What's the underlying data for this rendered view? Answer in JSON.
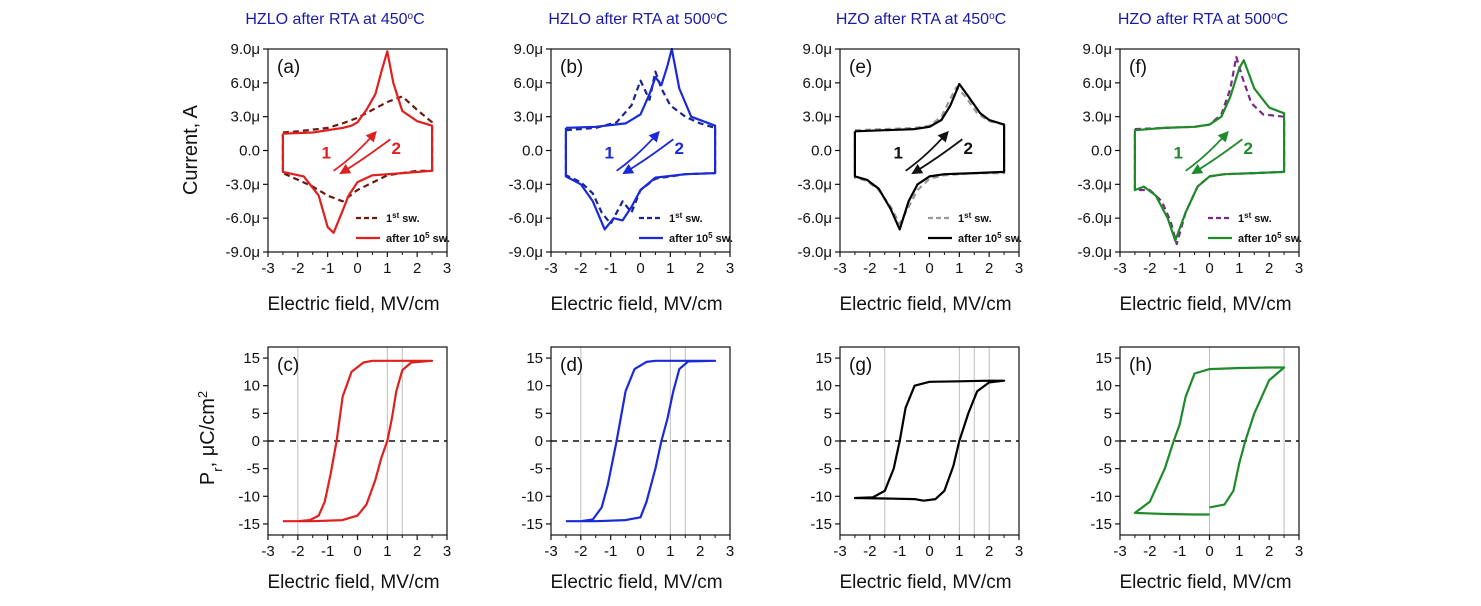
{
  "column_titles": [
    {
      "pre": "HZLO after RTA at  450",
      "deg": "o",
      "post": "C"
    },
    {
      "pre": "HZLO after RTA at  500",
      "deg": "o",
      "post": "C"
    },
    {
      "pre": "HZO after RTA at  450",
      "deg": "o",
      "post": "C"
    },
    {
      "pre": "HZO after RTA at  500",
      "deg": "o",
      "post": "C"
    }
  ],
  "labels": {
    "current_ylabel": "Current, A",
    "pr_ylabel_main": "P",
    "pr_ylabel_sub": "r",
    "pr_ylabel_mid": ", μC/cm",
    "pr_ylabel_sup": "2",
    "xlabel": "Electric field, MV/cm",
    "legend_first_pre": "1",
    "legend_first_sup": "st",
    "legend_first_post": " sw.",
    "legend_after_pre": "after 10",
    "legend_after_sup": "5",
    "legend_after_post": " sw.",
    "arrow_1": "1",
    "arrow_2": "2"
  },
  "axes": {
    "x_ticks": [
      "-3",
      "-2",
      "-1",
      "0",
      "1",
      "2",
      "3"
    ],
    "current_ticks": [
      "9.0μ",
      "6.0μ",
      "3.0μ",
      "0.0",
      "-3.0μ",
      "-6.0μ",
      "-9.0μ"
    ],
    "pr_ticks": [
      "15",
      "10",
      "5",
      "0",
      "-5",
      "-10",
      "-15"
    ]
  },
  "chart_data": [
    {
      "type": "line",
      "panel": "(a)",
      "quantity": "current",
      "color": "#e0201e",
      "xlim": [
        -3,
        3
      ],
      "ylim": [
        -9e-06,
        9e-06
      ],
      "series": [
        {
          "name": "1st sw.",
          "style": "dashed",
          "color": "#6b1a12",
          "upper": {
            "x": [
              -2.5,
              -2.0,
              -1.0,
              -0.5,
              0.0,
              0.5,
              1.0,
              1.5,
              2.0,
              2.5
            ],
            "y": [
              1.6e-06,
              1.7e-06,
              2e-06,
              2.4e-06,
              2.9e-06,
              3.6e-06,
              4.3e-06,
              4.8e-06,
              3.6e-06,
              2.5e-06
            ]
          },
          "lower": {
            "x": [
              2.5,
              2.0,
              1.0,
              0.0,
              -0.5,
              -1.0,
              -1.5,
              -2.0,
              -2.5
            ],
            "y": [
              -1.8e-06,
              -1.8e-06,
              -2.2e-06,
              -3.5e-06,
              -4.5e-06,
              -4e-06,
              -3.2e-06,
              -2.6e-06,
              -2e-06
            ]
          }
        },
        {
          "name": "after 10^5 sw.",
          "style": "solid",
          "color": "#e0201e",
          "upper": {
            "x": [
              -2.5,
              -1.5,
              -0.5,
              -0.2,
              0.0,
              0.3,
              0.6,
              0.8,
              1.0,
              1.2,
              1.5,
              2.0,
              2.5
            ],
            "y": [
              1.5e-06,
              1.6e-06,
              2e-06,
              2.2e-06,
              2.5e-06,
              3.6e-06,
              5e-06,
              7e-06,
              8.8e-06,
              6e-06,
              3.5e-06,
              2.6e-06,
              2.2e-06
            ]
          },
          "lower": {
            "x": [
              2.5,
              1.5,
              0.5,
              0.0,
              -0.3,
              -0.6,
              -0.8,
              -1.0,
              -1.3,
              -1.8,
              -2.5
            ],
            "y": [
              -1.8e-06,
              -2e-06,
              -2.2e-06,
              -2.8e-06,
              -4e-06,
              -6e-06,
              -7.3e-06,
              -6.8e-06,
              -4e-06,
              -2.3e-06,
              -1.9e-06
            ]
          }
        }
      ]
    },
    {
      "type": "line",
      "panel": "(b)",
      "quantity": "current",
      "color": "#1a2ad6",
      "xlim": [
        -3,
        3
      ],
      "ylim": [
        -9e-06,
        9e-06
      ],
      "series": [
        {
          "name": "1st sw.",
          "style": "dashed",
          "color": "#1a2390",
          "upper": {
            "x": [
              -2.5,
              -1.5,
              -0.8,
              -0.3,
              0.0,
              0.3,
              0.5,
              0.7,
              1.0,
              1.5,
              2.0,
              2.5
            ],
            "y": [
              1.8e-06,
              2e-06,
              2.5e-06,
              4e-06,
              6.2e-06,
              4.5e-06,
              7e-06,
              5.5e-06,
              4e-06,
              3e-06,
              2.4e-06,
              2e-06
            ]
          },
          "lower": {
            "x": [
              2.5,
              1.5,
              0.5,
              0.0,
              -0.3,
              -0.6,
              -1.0,
              -1.3,
              -1.6,
              -2.0,
              -2.5
            ],
            "y": [
              -2e-06,
              -2.1e-06,
              -2.5e-06,
              -3.5e-06,
              -5.5e-06,
              -4.5e-06,
              -6.5e-06,
              -5.5e-06,
              -3.8e-06,
              -2.8e-06,
              -2.2e-06
            ]
          }
        },
        {
          "name": "after 10^5 sw.",
          "style": "solid",
          "color": "#1a2ad6",
          "upper": {
            "x": [
              -2.5,
              -1.5,
              -0.5,
              0.0,
              0.3,
              0.5,
              0.7,
              0.9,
              1.05,
              1.3,
              1.7,
              2.5
            ],
            "y": [
              2e-06,
              2.1e-06,
              2.4e-06,
              3.2e-06,
              5e-06,
              6.5e-06,
              5.8e-06,
              7.5e-06,
              9e-06,
              5.5e-06,
              3e-06,
              2.2e-06
            ]
          },
          "lower": {
            "x": [
              2.5,
              1.5,
              0.5,
              0.0,
              -0.3,
              -0.6,
              -0.9,
              -1.2,
              -1.6,
              -2.0,
              -2.5
            ],
            "y": [
              -2e-06,
              -2.1e-06,
              -2.4e-06,
              -3.5e-06,
              -5e-06,
              -6.2e-06,
              -6e-06,
              -7e-06,
              -4.5e-06,
              -3e-06,
              -2.3e-06
            ]
          }
        }
      ]
    },
    {
      "type": "line",
      "panel": "(e)",
      "quantity": "current",
      "color": "#000000",
      "xlim": [
        -3,
        3
      ],
      "ylim": [
        -9e-06,
        9e-06
      ],
      "series": [
        {
          "name": "1st sw.",
          "style": "dashed",
          "color": "#999999",
          "upper": {
            "x": [
              -2.5,
              -1.5,
              -0.5,
              0.0,
              0.4,
              0.7,
              0.9,
              1.2,
              1.6,
              2.0,
              2.5
            ],
            "y": [
              1.8e-06,
              1.9e-06,
              2e-06,
              2.2e-06,
              3e-06,
              4.6e-06,
              5.6e-06,
              4.8e-06,
              3.3e-06,
              2.6e-06,
              2.3e-06
            ]
          },
          "lower": {
            "x": [
              2.5,
              1.5,
              0.5,
              0.0,
              -0.4,
              -0.7,
              -1.0,
              -1.3,
              -1.7,
              -2.1,
              -2.5
            ],
            "y": [
              -2e-06,
              -2e-06,
              -2.2e-06,
              -2.5e-06,
              -3.5e-06,
              -5e-06,
              -6.5e-06,
              -5e-06,
              -3.5e-06,
              -2.7e-06,
              -2.4e-06
            ]
          }
        },
        {
          "name": "after 10^5 sw.",
          "style": "solid",
          "color": "#000000",
          "upper": {
            "x": [
              -2.5,
              -1.5,
              -0.5,
              0.0,
              0.4,
              0.7,
              1.0,
              1.3,
              1.7,
              2.0,
              2.5
            ],
            "y": [
              1.7e-06,
              1.8e-06,
              1.9e-06,
              2.1e-06,
              2.7e-06,
              4e-06,
              5.9e-06,
              4.8e-06,
              3.3e-06,
              2.7e-06,
              2.3e-06
            ]
          },
          "lower": {
            "x": [
              2.5,
              1.5,
              0.5,
              0.0,
              -0.4,
              -0.7,
              -1.0,
              -1.3,
              -1.7,
              -2.1,
              -2.5
            ],
            "y": [
              -1.9e-06,
              -2e-06,
              -2.1e-06,
              -2.3e-06,
              -3e-06,
              -4.5e-06,
              -7e-06,
              -5.2e-06,
              -3.4e-06,
              -2.6e-06,
              -2.3e-06
            ]
          }
        }
      ]
    },
    {
      "type": "line",
      "panel": "(f)",
      "quantity": "current",
      "color": "#1f8a2a",
      "xlim": [
        -3,
        3
      ],
      "ylim": [
        -9e-06,
        9e-06
      ],
      "series": [
        {
          "name": "1st sw.",
          "style": "dashed",
          "color": "#7a2a86",
          "upper": {
            "x": [
              -2.5,
              -1.5,
              -0.5,
              0.0,
              0.4,
              0.7,
              0.9,
              1.1,
              1.4,
              1.8,
              2.5
            ],
            "y": [
              1.9e-06,
              2e-06,
              2.1e-06,
              2.3e-06,
              3.2e-06,
              5.5e-06,
              8.3e-06,
              6.5e-06,
              4.2e-06,
              3.2e-06,
              3e-06
            ]
          },
          "lower": {
            "x": [
              2.5,
              1.5,
              0.5,
              0.0,
              -0.4,
              -0.8,
              -1.1,
              -1.3,
              -1.6,
              -2.0,
              -2.5
            ],
            "y": [
              -1.9e-06,
              -2e-06,
              -2.1e-06,
              -2.3e-06,
              -3.2e-06,
              -5.5e-06,
              -8.3e-06,
              -6.3e-06,
              -4.5e-06,
              -3.5e-06,
              -3.5e-06
            ]
          }
        },
        {
          "name": "after 10^5 sw.",
          "style": "solid",
          "color": "#1f8a2a",
          "upper": {
            "x": [
              -2.5,
              -1.5,
              -0.5,
              0.0,
              0.4,
              0.7,
              1.0,
              1.15,
              1.5,
              2.0,
              2.5
            ],
            "y": [
              1.8e-06,
              2e-06,
              2.1e-06,
              2.3e-06,
              3e-06,
              4.8e-06,
              7.3e-06,
              8e-06,
              5.5e-06,
              3.8e-06,
              3.3e-06
            ]
          },
          "lower": {
            "x": [
              2.5,
              1.5,
              0.5,
              0.0,
              -0.4,
              -0.8,
              -1.15,
              -1.4,
              -1.8,
              -2.2,
              -2.5
            ],
            "y": [
              -1.9e-06,
              -2e-06,
              -2.1e-06,
              -2.3e-06,
              -3.2e-06,
              -5.5e-06,
              -8e-06,
              -6e-06,
              -4e-06,
              -3.2e-06,
              -3.5e-06
            ]
          }
        }
      ]
    },
    {
      "type": "line",
      "panel": "(c)",
      "quantity": "polarization",
      "color": "#e0201e",
      "xlim": [
        -3,
        3
      ],
      "ylim": [
        -17,
        17
      ],
      "vlines": [
        -2,
        1,
        1.5
      ],
      "series": [
        {
          "style": "solid",
          "color": "#e0201e",
          "x": [
            -2.5,
            -1.5,
            -0.5,
            0.0,
            0.3,
            0.6,
            0.8,
            1.0,
            1.15,
            1.3,
            1.5,
            1.8,
            2.5,
            2.0,
            1.2,
            0.5,
            0.2,
            -0.2,
            -0.5,
            -0.7,
            -0.9,
            -1.1,
            -1.3,
            -1.6,
            -2.0,
            -2.5
          ],
          "y": [
            -14.5,
            -14.5,
            -14.3,
            -13.5,
            -11.5,
            -7.0,
            -3.0,
            0.0,
            4.0,
            9.0,
            12.8,
            14.2,
            14.5,
            14.5,
            14.5,
            14.5,
            14.2,
            12.5,
            8.0,
            0.0,
            -6.0,
            -11.0,
            -13.5,
            -14.3,
            -14.5,
            -14.5
          ]
        }
      ]
    },
    {
      "type": "line",
      "panel": "(d)",
      "quantity": "polarization",
      "color": "#1a2ad6",
      "xlim": [
        -3,
        3
      ],
      "ylim": [
        -17,
        17
      ],
      "vlines": [
        -2,
        1,
        1.5
      ],
      "series": [
        {
          "style": "solid",
          "color": "#1a2ad6",
          "x": [
            -2.5,
            -1.5,
            -0.5,
            0.0,
            0.2,
            0.5,
            0.7,
            0.9,
            1.1,
            1.3,
            1.6,
            2.5,
            2.0,
            1.2,
            0.5,
            0.2,
            -0.2,
            -0.5,
            -0.8,
            -1.1,
            -1.3,
            -1.6,
            -2.0,
            -2.5
          ],
          "y": [
            -14.5,
            -14.5,
            -14.3,
            -13.8,
            -11.0,
            -5.0,
            0.0,
            4.0,
            9.0,
            13.0,
            14.4,
            14.5,
            14.5,
            14.5,
            14.5,
            14.3,
            13.0,
            9.0,
            0.0,
            -8.0,
            -12.0,
            -14.2,
            -14.5,
            -14.5
          ]
        }
      ]
    },
    {
      "type": "line",
      "panel": "(g)",
      "quantity": "polarization",
      "color": "#000000",
      "xlim": [
        -3,
        3
      ],
      "ylim": [
        -17,
        17
      ],
      "vlines": [
        -1.5,
        1,
        1.5,
        2
      ],
      "series": [
        {
          "style": "solid",
          "color": "#000000",
          "x": [
            -0.2,
            0.2,
            0.5,
            0.8,
            1.0,
            1.3,
            1.6,
            2.0,
            2.5,
            2.0,
            1.0,
            0.0,
            -0.5,
            -0.8,
            -1.0,
            -1.2,
            -1.5,
            -1.9,
            -2.5,
            -1.5,
            -0.5,
            -0.2
          ],
          "y": [
            -10.8,
            -10.5,
            -9.0,
            -4.5,
            0.0,
            5.0,
            9.0,
            10.6,
            10.9,
            10.9,
            10.8,
            10.7,
            10.0,
            6.0,
            0.0,
            -5.0,
            -9.0,
            -10.2,
            -10.3,
            -10.4,
            -10.5,
            -10.8
          ]
        }
      ]
    },
    {
      "type": "line",
      "panel": "(h)",
      "quantity": "polarization",
      "color": "#1f8a2a",
      "xlim": [
        -3,
        3
      ],
      "ylim": [
        -17,
        17
      ],
      "vlines": [
        0,
        2.5
      ],
      "series": [
        {
          "style": "solid",
          "color": "#1f8a2a",
          "x": [
            0.0,
            0.5,
            0.8,
            1.0,
            1.2,
            1.5,
            2.0,
            2.5,
            2.0,
            1.0,
            0.0,
            -0.5,
            -0.8,
            -1.0,
            -1.2,
            -1.5,
            -2.0,
            -2.5,
            -1.5,
            -0.5,
            0.0
          ],
          "y": [
            -12.0,
            -11.5,
            -9.0,
            -4.0,
            0.0,
            5.0,
            11.0,
            13.3,
            13.3,
            13.2,
            13.0,
            12.2,
            8.0,
            3.0,
            0.0,
            -5.0,
            -11.0,
            -13.0,
            -13.2,
            -13.3,
            -13.3
          ]
        }
      ]
    }
  ],
  "panel_labels": [
    "(a)",
    "(b)",
    "(e)",
    "(f)",
    "(c)",
    "(d)",
    "(g)",
    "(h)"
  ]
}
